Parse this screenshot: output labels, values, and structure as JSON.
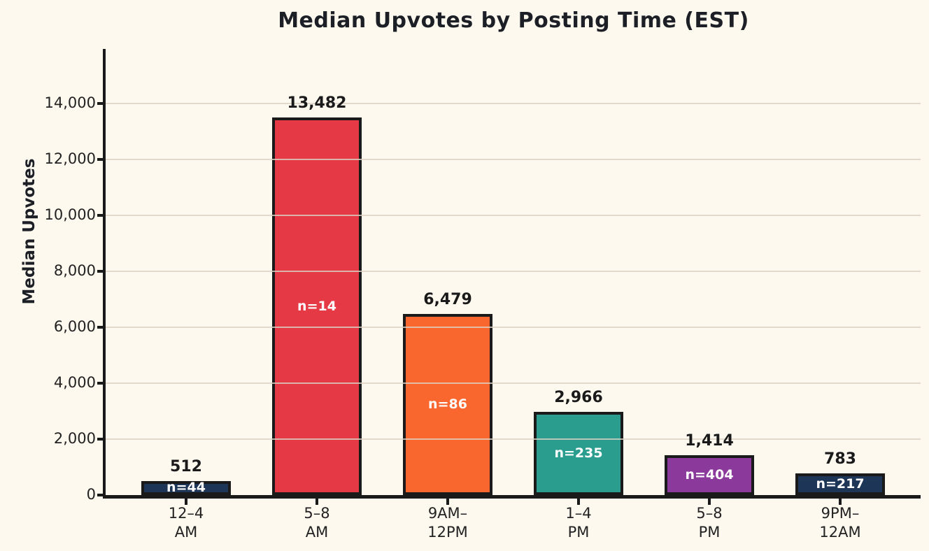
{
  "title": "Median Upvotes by Posting Time (EST)",
  "colors": {
    "background": "#fdf9ee",
    "text": "#1c2026",
    "axis": "#1a1a1a",
    "grid": "#dbd3c4",
    "bar_label_text": "#ffffff"
  },
  "chart_data": {
    "type": "bar",
    "title": "Median Upvotes by Posting Time (EST)",
    "xlabel": "",
    "ylabel": "Median Upvotes",
    "ylim": [
      0,
      15943
    ],
    "grid": true,
    "grid_above_bars": true,
    "legend": "none",
    "yticks": [
      0,
      2000,
      4000,
      6000,
      8000,
      10000,
      12000,
      14000
    ],
    "ytick_labels": [
      "0",
      "2,000",
      "4,000",
      "6,000",
      "8,000",
      "10,000",
      "12,000",
      "14,000"
    ],
    "categories": [
      "12–4 AM",
      "5–8 AM",
      "9AM–12PM",
      "1–4 PM",
      "5–8 PM",
      "9PM–12AM"
    ],
    "category_lines": [
      [
        "12–4",
        "AM"
      ],
      [
        "5–8",
        "AM"
      ],
      [
        "9AM–",
        "12PM"
      ],
      [
        "1–4",
        "PM"
      ],
      [
        "5–8",
        "PM"
      ],
      [
        "9PM–",
        "12AM"
      ]
    ],
    "values": [
      512,
      13482,
      6479,
      2966,
      1414,
      783
    ],
    "value_labels": [
      "512",
      "13,482",
      "6,479",
      "2,966",
      "1,414",
      "783"
    ],
    "sample_sizes": [
      44,
      14,
      86,
      235,
      404,
      217
    ],
    "n_labels": [
      "n=44",
      "n=14",
      "n=86",
      "n=235",
      "n=404",
      "n=217"
    ],
    "bar_colors": [
      "#1d3557",
      "#e63946",
      "#f9672f",
      "#2a9d8f",
      "#8b3a9c",
      "#1d3557"
    ]
  }
}
